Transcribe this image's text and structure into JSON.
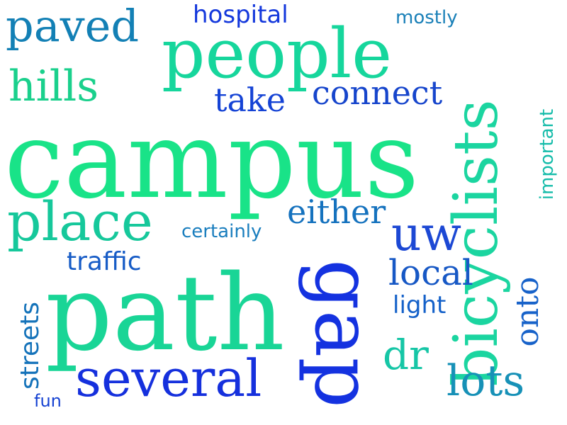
{
  "words": [
    {
      "text": "campus",
      "color": "#19E388"
    },
    {
      "text": "path",
      "color": "#19D596"
    },
    {
      "text": "people",
      "color": "#16D69C"
    },
    {
      "text": "bicyclists",
      "color": "#1BD5A0"
    },
    {
      "text": "gap",
      "color": "#1432E0"
    },
    {
      "text": "several",
      "color": "#1530DD"
    },
    {
      "text": "place",
      "color": "#16C89B"
    },
    {
      "text": "paved",
      "color": "#1380B5"
    },
    {
      "text": "hills",
      "color": "#1AD08C"
    },
    {
      "text": "uw",
      "color": "#1C48D4"
    },
    {
      "text": "streets",
      "color": "#1573BA"
    },
    {
      "text": "local",
      "color": "#1758C5"
    },
    {
      "text": "lots",
      "color": "#1791B7"
    },
    {
      "text": "dr",
      "color": "#16C6A6"
    },
    {
      "text": "either",
      "color": "#1572BE"
    },
    {
      "text": "connect",
      "color": "#1645CC"
    },
    {
      "text": "take",
      "color": "#1543D5"
    },
    {
      "text": "onto",
      "color": "#1762C9"
    },
    {
      "text": "hospital",
      "color": "#1438DC"
    },
    {
      "text": "traffic",
      "color": "#175CC6"
    },
    {
      "text": "light",
      "color": "#1461C9"
    },
    {
      "text": "important",
      "color": "#16BCAA"
    },
    {
      "text": "mostly",
      "color": "#1A80B8"
    },
    {
      "text": "certainly",
      "color": "#1A7EBE"
    },
    {
      "text": "fun",
      "color": "#1642D2"
    }
  ]
}
